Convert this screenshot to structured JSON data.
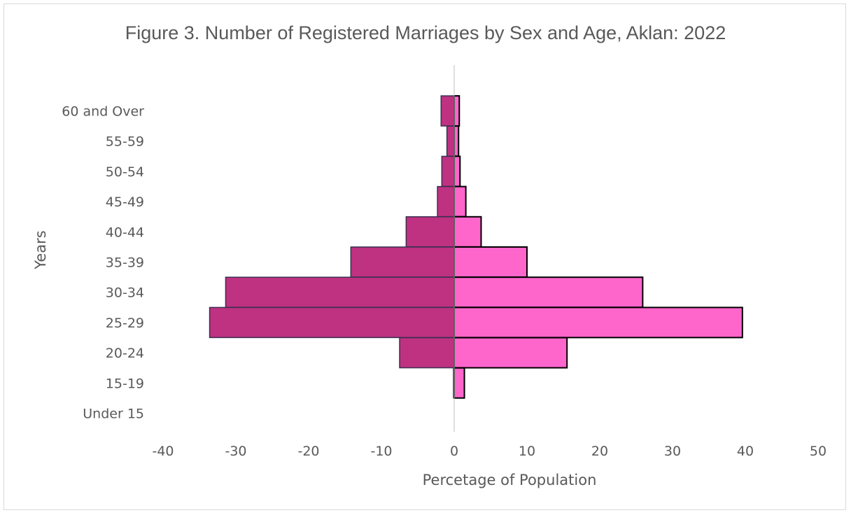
{
  "chart_data": {
    "type": "bar",
    "title": "Figure 3. Number of Registered Marriages by Sex and Age, Aklan: 2022",
    "xlabel": "Percetage of Population",
    "ylabel": "Years",
    "categories": [
      "60 and Over",
      "55-59",
      "50-54",
      "45-49",
      "40-44",
      "35-39",
      "30-34",
      "25-29",
      "20-24",
      "15-19",
      "Under 15"
    ],
    "series": [
      {
        "values": [
          -1.8,
          -1.0,
          -1.7,
          -2.3,
          -6.6,
          -14.2,
          -31.4,
          -33.6,
          -7.5,
          -0.1,
          0
        ]
      },
      {
        "values": [
          0.7,
          0.6,
          0.8,
          1.6,
          3.7,
          10.0,
          25.9,
          39.6,
          15.5,
          1.4,
          0
        ]
      }
    ],
    "xlim": [
      -40,
      50
    ],
    "xticks": [
      -40,
      -30,
      -20,
      -10,
      0,
      10,
      20,
      30,
      40,
      50
    ],
    "grid": false,
    "colors": {
      "series_0_fill": "#bf3181",
      "series_0_stroke": "#3a3050",
      "series_1_fill": "#ff66cc",
      "series_1_stroke": "#000000",
      "axis_line": "#bfbfbf",
      "text": "#595959"
    }
  }
}
